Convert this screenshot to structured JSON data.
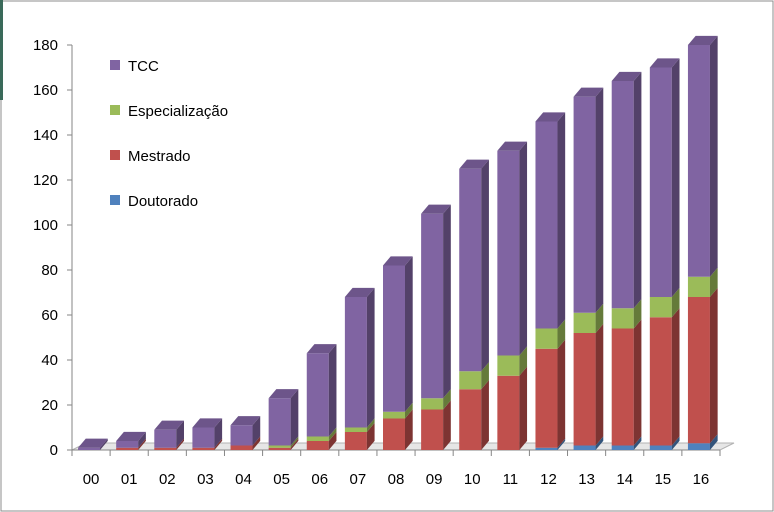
{
  "chart_data": {
    "type": "bar",
    "stacked": true,
    "three_d": true,
    "categories": [
      "00",
      "01",
      "02",
      "03",
      "04",
      "05",
      "06",
      "07",
      "08",
      "09",
      "10",
      "11",
      "12",
      "13",
      "14",
      "15",
      "16"
    ],
    "series": [
      {
        "name": "Doutorado",
        "color": "#4f81bd",
        "values": [
          0,
          0,
          0,
          0,
          0,
          0,
          0,
          0,
          0,
          0,
          0,
          0,
          1,
          2,
          2,
          2,
          3
        ]
      },
      {
        "name": "Mestrado",
        "color": "#c0504d",
        "values": [
          0,
          1,
          1,
          1,
          2,
          1,
          4,
          8,
          14,
          18,
          27,
          33,
          44,
          50,
          52,
          57,
          65
        ]
      },
      {
        "name": "Especialização",
        "color": "#9bbb59",
        "values": [
          0,
          0,
          0,
          0,
          0,
          1,
          2,
          2,
          3,
          5,
          8,
          9,
          9,
          9,
          9,
          9,
          9
        ]
      },
      {
        "name": "TCC",
        "color": "#8064a2",
        "values": [
          1,
          3,
          8,
          9,
          9,
          21,
          37,
          58,
          65,
          82,
          90,
          91,
          92,
          96,
          101,
          102,
          103
        ]
      }
    ],
    "legend_order": [
      "TCC",
      "Especialização",
      "Mestrado",
      "Doutorado"
    ],
    "legend_position": "top-left",
    "ylim": [
      0,
      180
    ],
    "yticks": [
      0,
      20,
      40,
      60,
      80,
      100,
      120,
      140,
      160,
      180
    ],
    "xlabel": "",
    "ylabel": "",
    "title": "",
    "grid": false
  }
}
